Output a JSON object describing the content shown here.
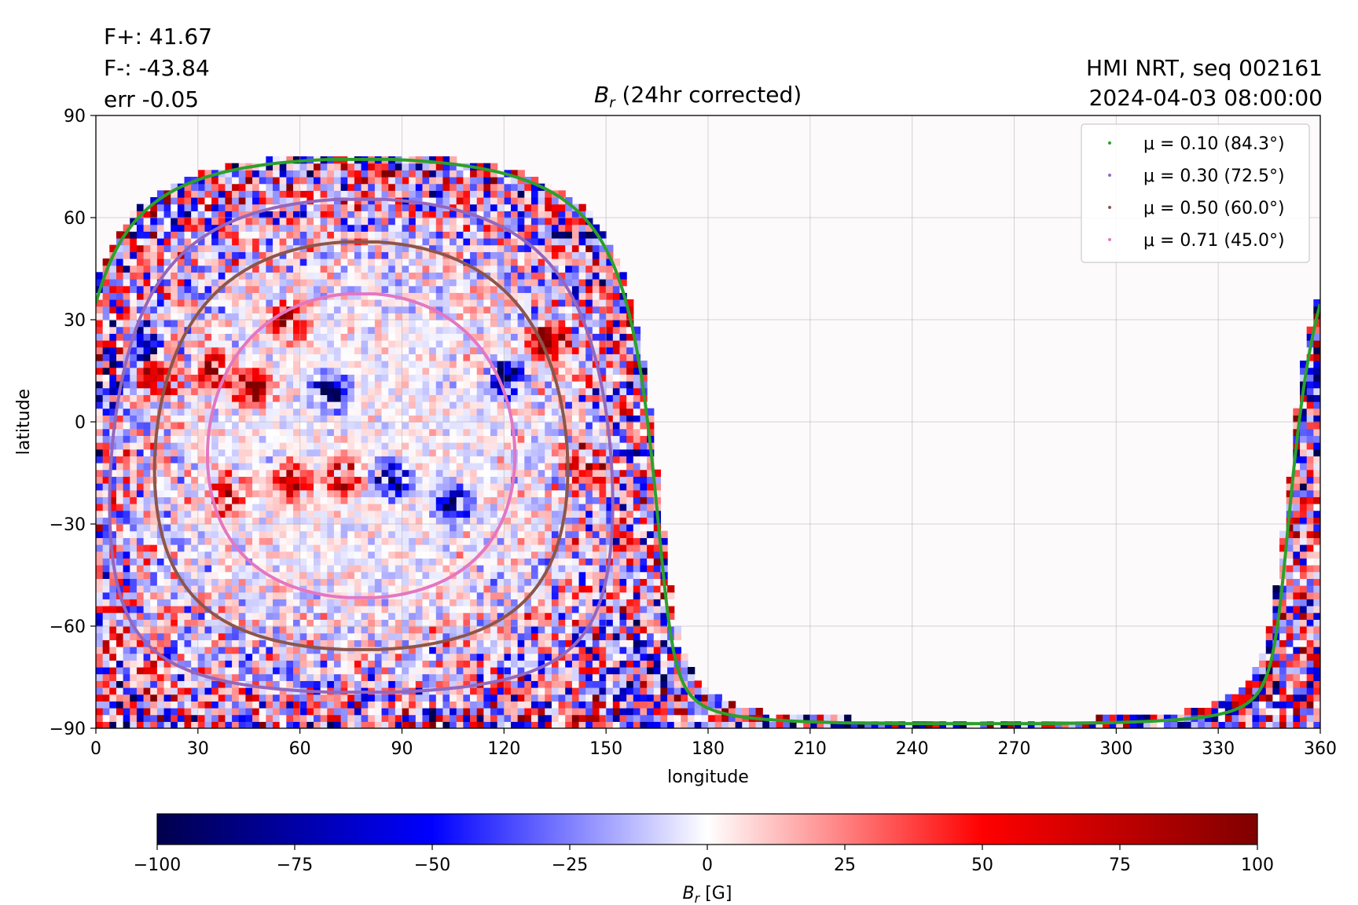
{
  "header": {
    "flux_pos": "F+: 41.67",
    "flux_neg": "F-: -43.84",
    "error": "err -0.05",
    "title_symbol": "B",
    "title_subscript": "r",
    "title_rest": " (24hr corrected)",
    "instrument": "HMI NRT, seq 002161",
    "timestamp": "2024-04-03 08:00:00"
  },
  "chart_data": {
    "type": "heatmap",
    "xlabel": "longitude",
    "ylabel": "latitude",
    "xlim": [
      0,
      360
    ],
    "ylim": [
      -90,
      90
    ],
    "x_ticks": [
      0,
      30,
      60,
      90,
      120,
      150,
      180,
      210,
      240,
      270,
      300,
      330,
      360
    ],
    "y_ticks": [
      -90,
      -60,
      -30,
      0,
      30,
      60,
      90
    ],
    "y_tick_labels": [
      "−90",
      "−60",
      "−30",
      "0",
      "30",
      "60",
      "90"
    ],
    "grid": true,
    "legend_position": "top-right",
    "disk_center": {
      "longitude": 78,
      "latitude": -7
    },
    "observed_region_longitude": [
      0,
      170
    ],
    "series": [
      {
        "name": "μ = 0.10 (84.3°)",
        "mu": 0.1,
        "angle_deg": 84.3,
        "color": "#2ca02c"
      },
      {
        "name": "μ = 0.30 (72.5°)",
        "mu": 0.3,
        "angle_deg": 72.5,
        "color": "#9467bd"
      },
      {
        "name": "μ = 0.50 (60.0°)",
        "mu": 0.5,
        "angle_deg": 60.0,
        "color": "#8c564b"
      },
      {
        "name": "μ = 0.71 (45.0°)",
        "mu": 0.71,
        "angle_deg": 45.0,
        "color": "#e377c2"
      }
    ],
    "colorbar": {
      "label_symbol": "B",
      "label_subscript": "r",
      "label_unit": " [G]",
      "range": [
        -100,
        100
      ],
      "ticks": [
        -100,
        -75,
        -50,
        -25,
        0,
        25,
        50,
        75,
        100
      ],
      "tick_labels": [
        "−100",
        "−75",
        "−50",
        "−25",
        "0",
        "25",
        "50",
        "75",
        "100"
      ],
      "colormap": "seismic",
      "colors": [
        "#00004d",
        "#0000ff",
        "#ffffff",
        "#ff0000",
        "#800000"
      ]
    },
    "active_regions": [
      {
        "lon": 14,
        "lat": 22,
        "sign": "negative"
      },
      {
        "lon": 18,
        "lat": 12,
        "sign": "positive"
      },
      {
        "lon": 34,
        "lat": 14,
        "sign": "positive"
      },
      {
        "lon": 45,
        "lat": 9,
        "sign": "positive"
      },
      {
        "lon": 56,
        "lat": 29,
        "sign": "positive"
      },
      {
        "lon": 68,
        "lat": 8,
        "sign": "negative"
      },
      {
        "lon": 120,
        "lat": 12,
        "sign": "negative"
      },
      {
        "lon": 132,
        "lat": 23,
        "sign": "positive"
      },
      {
        "lon": 143,
        "lat": -13,
        "sign": "positive"
      },
      {
        "lon": 38,
        "lat": -22,
        "sign": "positive"
      },
      {
        "lon": 57,
        "lat": -19,
        "sign": "positive"
      },
      {
        "lon": 72,
        "lat": -17,
        "sign": "positive"
      },
      {
        "lon": 86,
        "lat": -18,
        "sign": "negative"
      },
      {
        "lon": 104,
        "lat": -25,
        "sign": "negative"
      },
      {
        "lon": 2,
        "lat": 10,
        "sign": "negative"
      },
      {
        "lon": 358,
        "lat": 10,
        "sign": "negative"
      }
    ]
  }
}
